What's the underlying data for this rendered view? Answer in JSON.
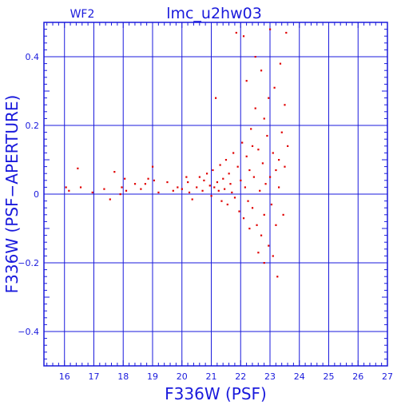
{
  "chart_data": {
    "type": "scatter",
    "title": "lmc_u2hw03",
    "subtitle": "WF2",
    "xlabel": "F336W (PSF)",
    "ylabel": "F336W (PSF−APERTURE)",
    "xlim": [
      15.3,
      27.0
    ],
    "ylim": [
      -0.5,
      0.5
    ],
    "x_ticks": [
      16,
      17,
      18,
      19,
      20,
      21,
      22,
      23,
      24,
      25,
      26,
      27
    ],
    "y_ticks": [
      0.4,
      0.2,
      0,
      -0.2,
      -0.4
    ],
    "y_tick_labels": [
      "0.4",
      "0.2",
      "0",
      "−0.2",
      "−0.4"
    ],
    "grid": true,
    "colors": {
      "axis": "#1a1adc",
      "points": "#e00000",
      "highlight": "#f0d000",
      "background": "#ffffff"
    },
    "series": [
      {
        "values": [
          [
            16.05,
            0.02
          ],
          [
            16.15,
            0.01
          ],
          [
            16.45,
            0.075
          ],
          [
            16.55,
            0.02
          ],
          [
            16.95,
            0.005
          ],
          [
            17.35,
            0.015
          ],
          [
            17.55,
            -0.015
          ],
          [
            17.7,
            0.065
          ],
          [
            17.9,
            0.0
          ],
          [
            17.95,
            0.02
          ],
          [
            18.05,
            0.045
          ],
          [
            18.1,
            0.01
          ],
          [
            18.4,
            0.03
          ],
          [
            18.6,
            0.015
          ],
          [
            18.75,
            0.03
          ],
          [
            18.85,
            0.045
          ],
          [
            19.0,
            0.08
          ],
          [
            19.05,
            0.04
          ],
          [
            19.2,
            0.005
          ],
          [
            19.5,
            0.035
          ],
          [
            19.7,
            0.01
          ],
          [
            19.85,
            0.02
          ],
          [
            20.0,
            0.015
          ],
          [
            20.15,
            0.05
          ],
          [
            20.2,
            0.035
          ],
          [
            20.25,
            0.005
          ],
          [
            20.35,
            -0.015
          ],
          [
            20.5,
            0.02
          ],
          [
            20.6,
            0.05
          ],
          [
            20.7,
            0.01
          ],
          [
            20.75,
            0.04
          ],
          [
            20.85,
            0.06
          ],
          [
            20.95,
            0.025
          ],
          [
            21.0,
            -0.005
          ],
          [
            21.05,
            0.07
          ],
          [
            21.1,
            0.02
          ],
          [
            21.15,
            0.28
          ],
          [
            21.2,
            0.035
          ],
          [
            21.25,
            0.01
          ],
          [
            21.3,
            0.085
          ],
          [
            21.35,
            -0.02
          ],
          [
            21.4,
            0.045
          ],
          [
            21.45,
            0.015
          ],
          [
            21.5,
            0.1
          ],
          [
            21.55,
            -0.03
          ],
          [
            21.6,
            0.06
          ],
          [
            21.65,
            0.03
          ],
          [
            21.7,
            0.005
          ],
          [
            21.75,
            0.12
          ],
          [
            21.8,
            -0.01
          ],
          [
            21.85,
            0.47
          ],
          [
            21.9,
            0.08
          ],
          [
            21.95,
            -0.05
          ],
          [
            22.0,
            0.04
          ],
          [
            22.05,
            0.15
          ],
          [
            22.1,
            0.46
          ],
          [
            22.1,
            -0.07
          ],
          [
            22.15,
            0.02
          ],
          [
            22.2,
            0.33
          ],
          [
            22.2,
            0.11
          ],
          [
            22.25,
            -0.02
          ],
          [
            22.3,
            0.07
          ],
          [
            22.35,
            0.19
          ],
          [
            22.4,
            -0.04
          ],
          [
            22.45,
            0.05
          ],
          [
            22.5,
            0.25
          ],
          [
            22.5,
            0.4
          ],
          [
            22.55,
            -0.09
          ],
          [
            22.6,
            0.13
          ],
          [
            22.65,
            0.01
          ],
          [
            22.7,
            0.36
          ],
          [
            22.7,
            -0.12
          ],
          [
            22.75,
            0.09
          ],
          [
            22.8,
            0.22
          ],
          [
            22.8,
            -0.06
          ],
          [
            22.85,
            0.03
          ],
          [
            22.9,
            0.17
          ],
          [
            22.95,
            -0.15
          ],
          [
            23.0,
            0.48
          ],
          [
            23.0,
            0.05
          ],
          [
            23.05,
            -0.03
          ],
          [
            23.1,
            0.12
          ],
          [
            23.15,
            0.31
          ],
          [
            23.2,
            -0.09
          ],
          [
            23.2,
            0.07
          ],
          [
            23.25,
            -0.24
          ],
          [
            23.3,
            0.02
          ],
          [
            23.35,
            0.38
          ],
          [
            23.4,
            0.18
          ],
          [
            23.45,
            -0.06
          ],
          [
            23.5,
            0.26
          ],
          [
            23.5,
            0.08
          ],
          [
            23.55,
            0.47
          ],
          [
            23.6,
            0.14
          ],
          [
            22.8,
            -0.2
          ],
          [
            23.1,
            -0.18
          ],
          [
            22.6,
            -0.17
          ],
          [
            22.95,
            0.28
          ],
          [
            23.3,
            0.1
          ],
          [
            22.4,
            0.14
          ],
          [
            22.3,
            -0.1
          ]
        ]
      }
    ]
  }
}
